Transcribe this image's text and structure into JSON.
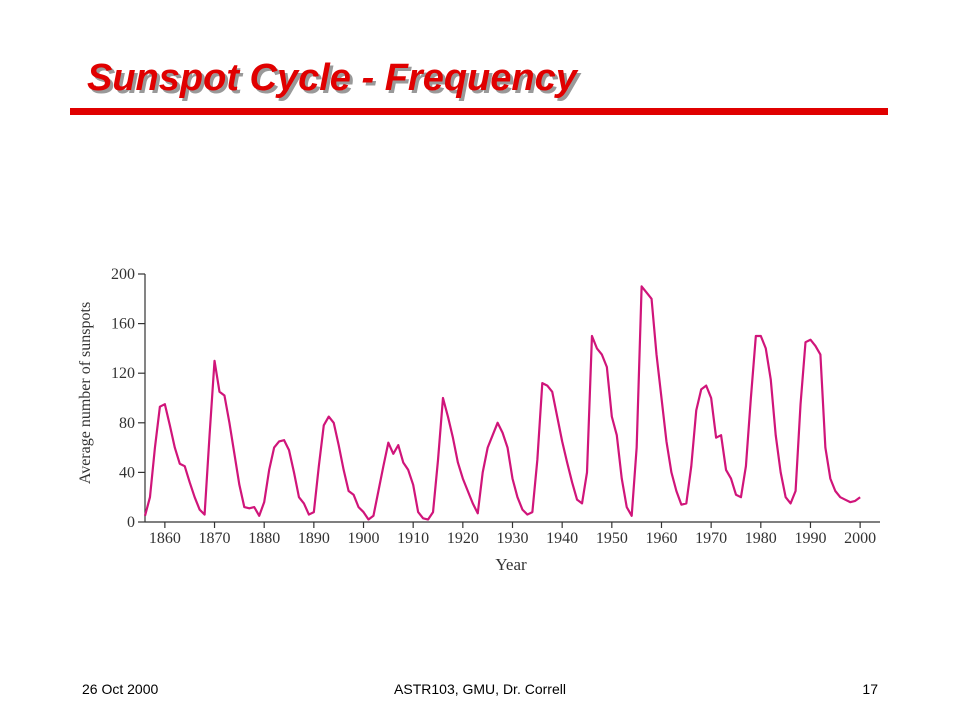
{
  "chart_data": {
    "type": "line",
    "title": "Sunspot Cycle - Frequency",
    "x_label": "Year",
    "y_label": "Average number of sunspots",
    "x": [
      1856,
      1857,
      1858,
      1859,
      1860,
      1861,
      1862,
      1863,
      1864,
      1865,
      1866,
      1867,
      1868,
      1869,
      1870,
      1871,
      1872,
      1873,
      1874,
      1875,
      1876,
      1877,
      1878,
      1879,
      1880,
      1881,
      1882,
      1883,
      1884,
      1885,
      1886,
      1887,
      1888,
      1889,
      1890,
      1891,
      1892,
      1893,
      1894,
      1895,
      1896,
      1897,
      1898,
      1899,
      1900,
      1901,
      1902,
      1903,
      1904,
      1905,
      1906,
      1907,
      1908,
      1909,
      1910,
      1911,
      1912,
      1913,
      1914,
      1915,
      1916,
      1917,
      1918,
      1919,
      1920,
      1921,
      1922,
      1923,
      1924,
      1925,
      1926,
      1927,
      1928,
      1929,
      1930,
      1931,
      1932,
      1933,
      1934,
      1935,
      1936,
      1937,
      1938,
      1939,
      1940,
      1941,
      1942,
      1943,
      1944,
      1945,
      1946,
      1947,
      1948,
      1949,
      1950,
      1951,
      1952,
      1953,
      1954,
      1955,
      1956,
      1957,
      1958,
      1959,
      1960,
      1961,
      1962,
      1963,
      1964,
      1965,
      1966,
      1967,
      1968,
      1969,
      1970,
      1971,
      1972,
      1973,
      1974,
      1975,
      1976,
      1977,
      1978,
      1979,
      1980,
      1981,
      1982,
      1983,
      1984,
      1985,
      1986,
      1987,
      1988,
      1989,
      1990,
      1991,
      1992,
      1993,
      1994,
      1995,
      1996,
      1997,
      1998,
      1999,
      2000
    ],
    "series": [
      {
        "name": "Sunspots",
        "color": "#d0157a",
        "values": [
          5,
          20,
          60,
          93,
          95,
          78,
          60,
          47,
          45,
          32,
          20,
          10,
          6,
          70,
          130,
          105,
          102,
          80,
          55,
          30,
          12,
          11,
          12,
          5,
          16,
          42,
          60,
          65,
          66,
          58,
          40,
          20,
          15,
          6,
          8,
          45,
          78,
          85,
          80,
          62,
          42,
          25,
          22,
          12,
          8,
          2,
          5,
          25,
          45,
          64,
          55,
          62,
          48,
          42,
          30,
          8,
          3,
          2,
          8,
          50,
          100,
          85,
          68,
          48,
          35,
          25,
          15,
          7,
          40,
          60,
          70,
          80,
          72,
          60,
          35,
          20,
          10,
          6,
          8,
          50,
          112,
          110,
          105,
          85,
          65,
          48,
          32,
          18,
          15,
          40,
          150,
          140,
          135,
          125,
          85,
          70,
          35,
          12,
          5,
          60,
          190,
          185,
          180,
          135,
          100,
          65,
          40,
          25,
          14,
          15,
          45,
          90,
          107,
          110,
          100,
          68,
          70,
          42,
          35,
          22,
          20,
          45,
          100,
          150,
          150,
          140,
          115,
          70,
          40,
          20,
          15,
          25,
          95,
          145,
          147,
          142,
          135,
          60,
          35,
          25,
          20,
          18,
          16,
          17,
          20
        ]
      }
    ],
    "xlim": [
      1856,
      2004
    ],
    "ylim": [
      0,
      200
    ],
    "xticks": [
      1860,
      1870,
      1880,
      1890,
      1900,
      1910,
      1920,
      1930,
      1940,
      1950,
      1960,
      1970,
      1980,
      1990,
      2000
    ],
    "yticks": [
      0,
      40,
      80,
      120,
      160,
      200
    ],
    "grid": false
  },
  "footer": {
    "date": "26 Oct 2000",
    "course": "ASTR103,  GMU, Dr. Correll",
    "page": "17"
  }
}
